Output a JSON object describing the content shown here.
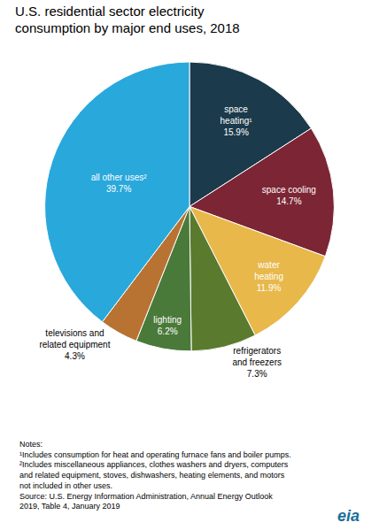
{
  "chart_data": {
    "type": "pie",
    "title": "U.S. residential sector electricity\nconsumption by major end uses, 2018",
    "categories": [
      "space\nheating¹",
      "space cooling",
      "water\nheating",
      "refrigerators\nand freezers",
      "lighting",
      "televisions and\nrelated equipment",
      "all other uses²"
    ],
    "values": [
      15.9,
      14.7,
      11.9,
      7.3,
      6.2,
      4.3,
      39.7
    ],
    "value_labels": [
      "15.9%",
      "14.7%",
      "11.9%",
      "7.3%",
      "6.2%",
      "4.3%",
      "39.7%"
    ],
    "data_labels": true,
    "colors": [
      "#1b3a4b",
      "#7b2535",
      "#e8b84b",
      "#5a7a2e",
      "#4a7a3a",
      "#b87333",
      "#29a8dc"
    ],
    "annotations": [
      "Notes:",
      "¹Includes consumption for heat and operating furnace fans and boiler pumps.",
      "²Includes miscellaneous appliances, clothes washers and dryers, computers",
      "and related equipment, stoves, dishwashers, heating elements, and motors",
      "not included in other uses.",
      "Source: U.S. Energy Information Administration, Annual Energy Outlook",
      "2019, Table 4, January 2019",
      "eia"
    ]
  }
}
